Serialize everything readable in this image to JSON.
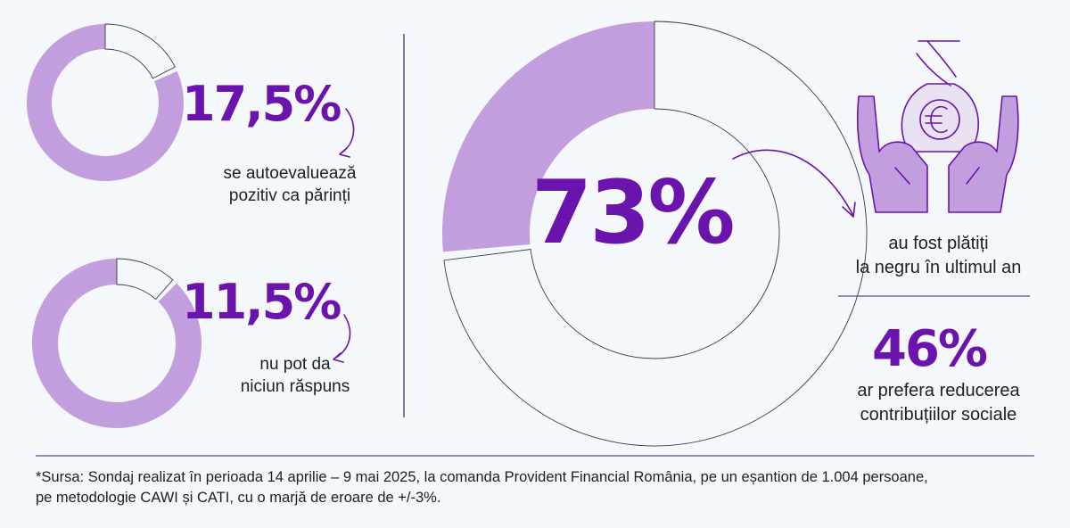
{
  "colors": {
    "ring": "#c39edf",
    "accent": "#6a14ad",
    "outline": "#3a3a4a",
    "rule": "#5b4a8a",
    "text": "#1e1e2a",
    "background": "#f4f8fa"
  },
  "icons": {
    "hands_money": "hands-holding-euro-bag-icon",
    "arrows": "curved-arrow-icon"
  },
  "chart_data": [
    {
      "type": "pie",
      "value_pct": 17.5,
      "label": "17,5%",
      "caption": "se autoevaluează\npozitiv ca părinți"
    },
    {
      "type": "pie",
      "value_pct": 11.5,
      "label": "11,5%",
      "caption": "nu pot da\nniciun răspuns"
    },
    {
      "type": "pie",
      "value_pct": 73,
      "label": "73%",
      "caption": "au fost plătiți\nla negru în ultimul an"
    }
  ],
  "stat_46": {
    "value": "46%",
    "caption": "ar prefera reducerea\ncontribuțiilor sociale"
  },
  "source": "*Sursa: Sondaj realizat în perioada 14 aprilie – 9 mai 2025, la comanda Provident Financial România, pe un eșantion de 1.004 persoane,\npe metodologie CAWI și CATI, cu o marjă de eroare de +/-3%."
}
